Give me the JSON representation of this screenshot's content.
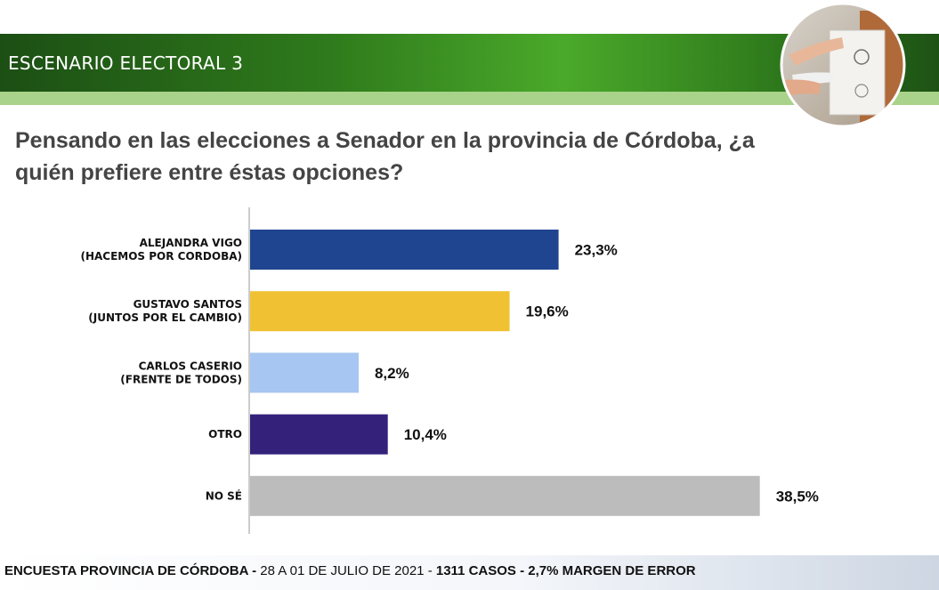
{
  "header": {
    "title": "ESCENARIO ELECTORAL 3",
    "question": "Pensando en las elecciones a Senador en la provincia de Córdoba, ¿a quién prefiere entre éstas opciones?"
  },
  "chart_data": {
    "type": "bar",
    "orientation": "horizontal",
    "categories": [
      [
        "ALEJANDRA VIGO",
        "(HACEMOS POR CORDOBA)"
      ],
      [
        "GUSTAVO SANTOS",
        "(JUNTOS POR EL CAMBIO)"
      ],
      [
        "CARLOS CASERIO",
        "(FRENTE DE TODOS)"
      ],
      [
        "OTRO"
      ],
      [
        "NO SÉ"
      ]
    ],
    "values": [
      23.3,
      19.6,
      8.2,
      10.4,
      38.5
    ],
    "value_labels": [
      "23,3%",
      "19,6%",
      "8,2%",
      "10,4%",
      "38,5%"
    ],
    "colors": [
      "#1f4590",
      "#f0c233",
      "#a7c6f1",
      "#33217a",
      "#bcbcbc"
    ],
    "xlim": [
      0,
      40
    ],
    "grid": false,
    "legend": "none"
  },
  "footer": {
    "part1": "ENCUESTA PROVINCIA DE CÓRDOBA -",
    "part2": " 28 A 01 DE JULIO DE 2021 - ",
    "part3": "1311 CASOS - 2,7% MARGEN DE ERROR"
  }
}
